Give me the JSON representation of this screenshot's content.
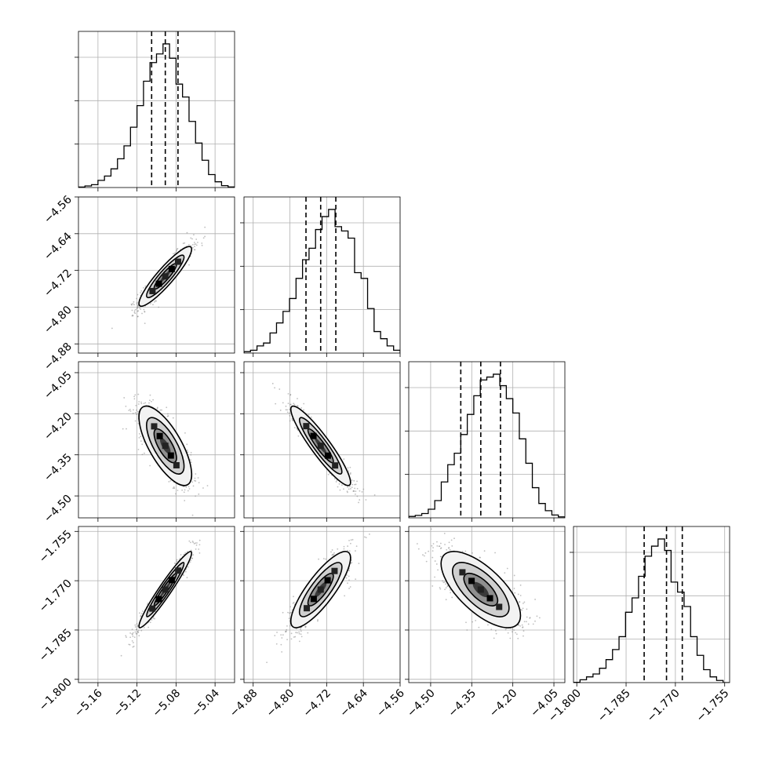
{
  "chart_data": {
    "type": "corner",
    "parameters": 4,
    "axes": [
      {
        "range": [
          -5.18,
          -5.02
        ],
        "ticks": [
          -5.16,
          -5.12,
          -5.08,
          -5.04
        ],
        "tick_labels": [
          "−5.16",
          "−5.12",
          "−5.08",
          "−5.04"
        ]
      },
      {
        "range": [
          -4.9,
          -4.56
        ],
        "ticks": [
          -4.88,
          -4.8,
          -4.72,
          -4.64,
          -4.56
        ],
        "tick_labels": [
          "−4.88",
          "−4.80",
          "−4.72",
          "−4.64",
          "−4.56"
        ]
      },
      {
        "range": [
          -4.58,
          -4.01
        ],
        "ticks": [
          -4.5,
          -4.35,
          -4.2,
          -4.05
        ],
        "tick_labels": [
          "−4.50",
          "−4.35",
          "−4.20",
          "−4.05"
        ]
      },
      {
        "range": [
          -1.801,
          -1.7535
        ],
        "ticks": [
          -1.8,
          -1.785,
          -1.77,
          -1.755
        ],
        "tick_labels": [
          "−1.800",
          "−1.785",
          "−1.770",
          "−1.755"
        ]
      }
    ],
    "quantiles": [
      [
        -5.105,
        -5.091,
        -5.078
      ],
      [
        -4.765,
        -4.733,
        -4.7
      ],
      [
        -4.39,
        -4.317,
        -4.245
      ],
      [
        -1.7795,
        -1.7727,
        -1.7679
      ]
    ],
    "histograms": [
      [
        0.003,
        0.011,
        0.02,
        0.05,
        0.08,
        0.13,
        0.2,
        0.29,
        0.42,
        0.57,
        0.74,
        0.87,
        0.93,
        1.0,
        0.9,
        0.72,
        0.63,
        0.46,
        0.31,
        0.19,
        0.09,
        0.04,
        0.013,
        0.004
      ],
      [
        0.01,
        0.02,
        0.05,
        0.07,
        0.14,
        0.21,
        0.29,
        0.38,
        0.52,
        0.65,
        0.73,
        0.86,
        0.95,
        1.0,
        0.88,
        0.85,
        0.8,
        0.56,
        0.52,
        0.31,
        0.15,
        0.1,
        0.05,
        0.02
      ],
      [
        0.01,
        0.017,
        0.03,
        0.06,
        0.12,
        0.25,
        0.37,
        0.45,
        0.58,
        0.72,
        0.85,
        0.96,
        0.98,
        1.0,
        0.92,
        0.83,
        0.73,
        0.55,
        0.38,
        0.21,
        0.1,
        0.05,
        0.02,
        0.007
      ],
      [
        0.002,
        0.02,
        0.04,
        0.06,
        0.1,
        0.16,
        0.23,
        0.32,
        0.49,
        0.59,
        0.74,
        0.88,
        0.95,
        1.0,
        0.92,
        0.7,
        0.63,
        0.53,
        0.32,
        0.19,
        0.09,
        0.04,
        0.015,
        0.0
      ]
    ],
    "correlations": [
      [
        1.0,
        0.91,
        -0.72,
        0.96
      ],
      [
        0.91,
        1.0,
        -0.92,
        0.83
      ],
      [
        -0.72,
        -0.92,
        1.0,
        -0.68
      ],
      [
        0.96,
        0.83,
        -0.68,
        1.0
      ]
    ],
    "grid": true,
    "quantile_line_style": "dashed",
    "contour_levels": 3
  }
}
